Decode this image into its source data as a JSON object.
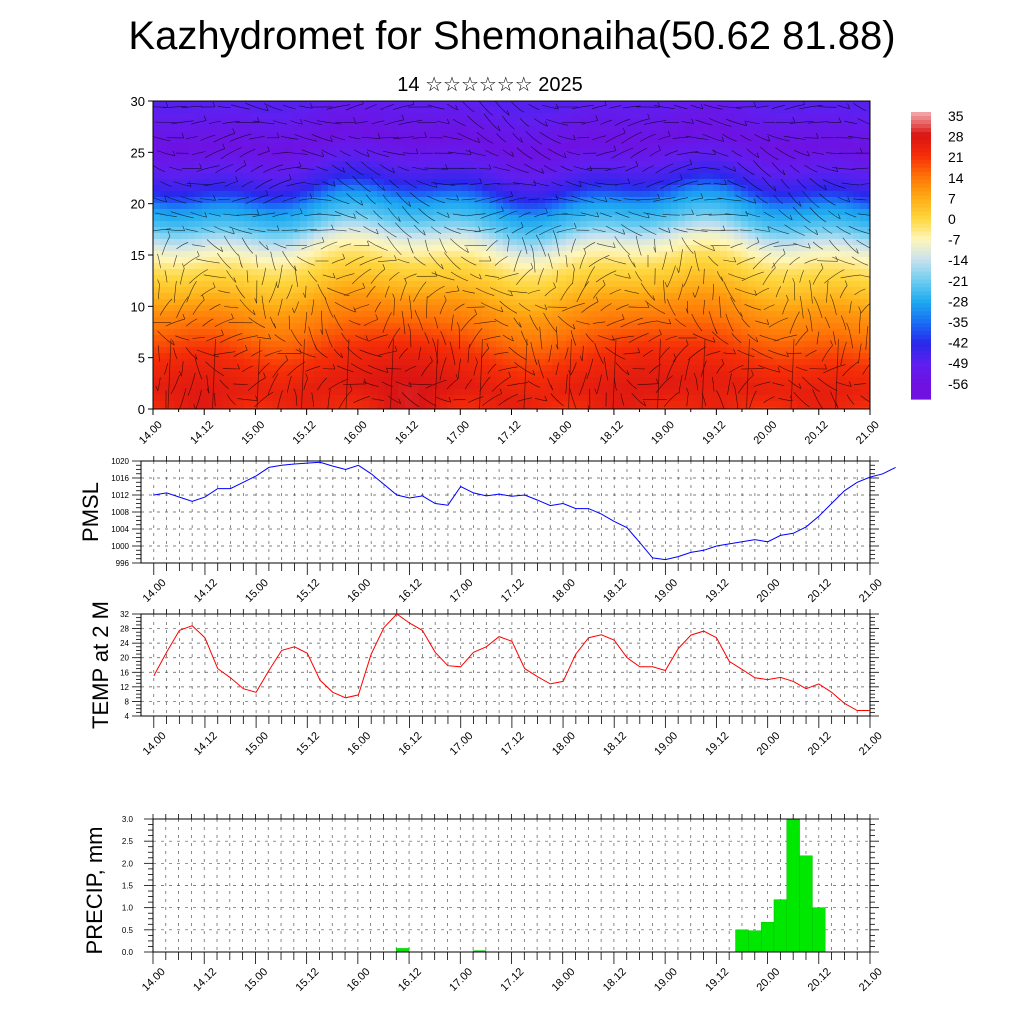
{
  "title": "Kazhydromet for Shemonaiha(50.62 81.88)",
  "subtitle": "14 ☆☆☆☆☆☆ 2025",
  "chart_data": [
    {
      "type": "heatmap",
      "name": "temperature-cross-section",
      "ylim": [
        0,
        30
      ],
      "yticks": [
        0,
        5,
        10,
        15,
        20,
        25,
        30
      ],
      "xtick_labels": [
        "14.00",
        "14.12",
        "15.00",
        "15.12",
        "16.00",
        "16.12",
        "17.00",
        "17.12",
        "18.00",
        "18.12",
        "19.00",
        "19.12",
        "20.00",
        "20.12",
        "21.00"
      ],
      "colorbar_labels": [
        "35",
        "28",
        "21",
        "14",
        "7",
        "0",
        "-7",
        "-14",
        "-21",
        "-28",
        "-35",
        "-42",
        "-49",
        "-56"
      ],
      "vertical_profile": {
        "levels": [
          0,
          2,
          5,
          8,
          10,
          12,
          14,
          15,
          16,
          17,
          18,
          20,
          21,
          22,
          24,
          26,
          28,
          30
        ],
        "values": [
          24,
          25,
          20,
          13,
          9,
          3,
          -2,
          -6,
          -10,
          -16,
          -22,
          -30,
          -38,
          -44,
          -50,
          -55,
          -52,
          -48
        ]
      },
      "warm_cores": [
        {
          "day": 2.5,
          "value": 30
        },
        {
          "day": 4.8,
          "value": 27
        },
        {
          "day": 0.4,
          "value": 27
        }
      ]
    },
    {
      "type": "line",
      "name": "pmsl",
      "ylabel": "PMSL",
      "ylim": [
        996,
        1020
      ],
      "yticks": [
        996,
        1000,
        1004,
        1008,
        1012,
        1016,
        1020
      ],
      "xtick_labels": [
        "14.00",
        "14.12",
        "15.00",
        "15.12",
        "16.00",
        "16.12",
        "17.00",
        "17.12",
        "18.00",
        "18.12",
        "19.00",
        "19.12",
        "20.00",
        "20.12",
        "21.00"
      ],
      "color": "#0000ff",
      "series": [
        {
          "x_start": 0,
          "x_step": 0.125,
          "values": [
            1012,
            1012.5,
            1011.5,
            1010.5,
            1011.5,
            1013.5,
            1013.5,
            1015,
            1016.5,
            1018.5,
            1019,
            1019.3,
            1019.5,
            1019.7,
            1018.8,
            1018,
            1019,
            1017,
            1014.5,
            1012,
            1011.3,
            1011.8,
            1010,
            1009.6,
            1014,
            1012.5,
            1011.8,
            1012.2,
            1011.7,
            1012,
            1010.8,
            1009.5,
            1010,
            1008.8,
            1008.8,
            1007.5,
            1005.8,
            1004.3,
            1000.8,
            997.2,
            996.8,
            997.5,
            998.5,
            999,
            1000,
            1000.5,
            1001,
            1001.5,
            1001,
            1002.5,
            1003,
            1004.5,
            1007,
            1010,
            1013,
            1015,
            1016.2,
            1017,
            1018.5
          ]
        }
      ]
    },
    {
      "type": "line",
      "name": "temp-2m",
      "ylabel": "TEMP at 2 M",
      "ylim": [
        4,
        32
      ],
      "yticks": [
        4,
        8,
        12,
        16,
        20,
        24,
        28,
        32
      ],
      "xtick_labels": [
        "14.00",
        "14.12",
        "15.00",
        "15.12",
        "16.00",
        "16.12",
        "17.00",
        "17.12",
        "18.00",
        "18.12",
        "19.00",
        "19.12",
        "20.00",
        "20.12",
        "21.00"
      ],
      "color": "#ff0000",
      "series": [
        {
          "x_start": 0,
          "x_step": 0.125,
          "values": [
            15,
            21.5,
            27.5,
            28.8,
            25.5,
            17,
            14.5,
            11.5,
            10.5,
            16.5,
            22,
            23,
            21.2,
            13.8,
            10.5,
            9,
            9.8,
            21,
            28.3,
            32,
            29.5,
            27.5,
            21.5,
            17.8,
            17.5,
            21.5,
            23,
            25.8,
            24.5,
            17,
            14.8,
            12.8,
            13.5,
            21,
            25.5,
            26.3,
            24.8,
            20,
            17.5,
            17.5,
            16.5,
            22.5,
            26.2,
            27.3,
            25.5,
            19,
            16.8,
            14.5,
            14,
            14.6,
            13.5,
            11.5,
            12.8,
            10.5,
            7.5,
            5.5,
            5.5
          ]
        }
      ]
    },
    {
      "type": "bar",
      "name": "precip",
      "ylabel": "PRECIP, mm",
      "ylim": [
        0,
        3
      ],
      "yticks": [
        "0.0",
        "0.5",
        "1.0",
        "1.5",
        "2.0",
        "2.5",
        "3.0"
      ],
      "xtick_labels": [
        "14.00",
        "14.12",
        "15.00",
        "15.12",
        "16.00",
        "16.12",
        "17.00",
        "17.12",
        "18.00",
        "18.12",
        "19.00",
        "19.12",
        "20.00",
        "20.12",
        "21.00"
      ],
      "color": "#00e800",
      "bins": [
        {
          "x0": 2.375,
          "x1": 2.5,
          "value": 0.08
        },
        {
          "x0": 3.125,
          "x1": 3.25,
          "value": 0.03
        },
        {
          "x0": 5.6875,
          "x1": 5.8125,
          "value": 0.5
        },
        {
          "x0": 5.8125,
          "x1": 5.9375,
          "value": 0.48
        },
        {
          "x0": 5.9375,
          "x1": 6.0625,
          "value": 0.67
        },
        {
          "x0": 6.0625,
          "x1": 6.1875,
          "value": 1.18
        },
        {
          "x0": 6.1875,
          "x1": 6.3125,
          "value": 3.0
        },
        {
          "x0": 6.3125,
          "x1": 6.4375,
          "value": 2.17
        },
        {
          "x0": 6.4375,
          "x1": 6.5625,
          "value": 1.0
        }
      ]
    }
  ]
}
